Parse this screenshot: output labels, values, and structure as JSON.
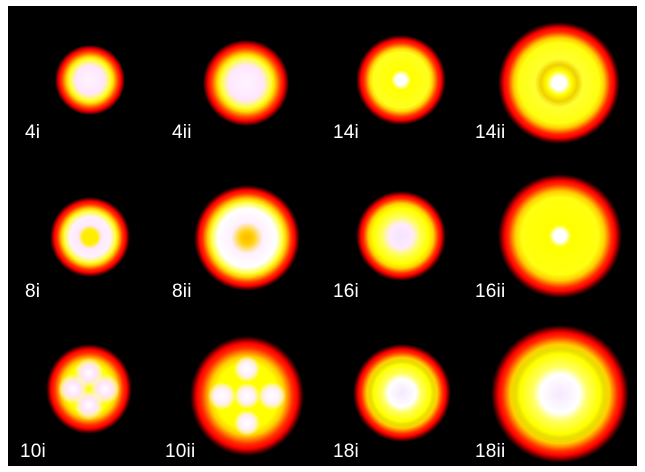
{
  "panels": [
    {
      "id": "p-4i",
      "label": "4i"
    },
    {
      "id": "p-4ii",
      "label": "4ii"
    },
    {
      "id": "p-14i",
      "label": "14i"
    },
    {
      "id": "p-14ii",
      "label": "14ii"
    },
    {
      "id": "p-8i",
      "label": "8i"
    },
    {
      "id": "p-8ii",
      "label": "8ii"
    },
    {
      "id": "p-16i",
      "label": "16i"
    },
    {
      "id": "p-16ii",
      "label": "16ii"
    },
    {
      "id": "p-10i",
      "label": "10i"
    },
    {
      "id": "p-10ii",
      "label": "10ii"
    },
    {
      "id": "p-18i",
      "label": "18i"
    },
    {
      "id": "p-18ii",
      "label": "18ii"
    }
  ],
  "colors": {
    "background": "#000000",
    "rim": "#ff0000",
    "band": "#ffff00",
    "core": "#ffffff",
    "label": "#ffffff"
  }
}
